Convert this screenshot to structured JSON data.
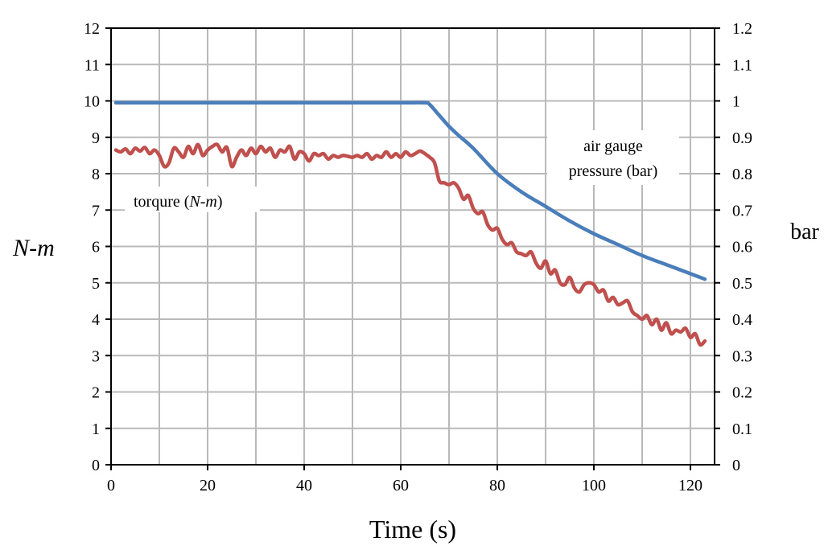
{
  "chart_data": {
    "type": "line",
    "xlabel": "Time (s)",
    "ylabel_left": "N-m",
    "ylabel_right": "bar",
    "xlim": [
      0,
      125
    ],
    "xticks": [
      0,
      20,
      40,
      60,
      80,
      100,
      120
    ],
    "xgrid_step": 10,
    "ylim_left": [
      0,
      12
    ],
    "yticks_left": [
      "0",
      "1",
      "2",
      "3",
      "4",
      "5",
      "6",
      "7",
      "8",
      "9",
      "10",
      "11",
      "12"
    ],
    "ylim_right": [
      0,
      1.2
    ],
    "yticks_right": [
      "0",
      "0.1",
      "0.2",
      "0.3",
      "0.4",
      "0.5",
      "0.6",
      "0.7",
      "0.8",
      "0.9",
      "1",
      "1.1",
      "1.2"
    ],
    "grid": true,
    "annotations": {
      "torque": {
        "prefix": "torqure (",
        "italic": "N-m",
        "suffix": ")"
      },
      "pressure": {
        "line1": "air gauge",
        "line2": "pressure (bar)"
      }
    },
    "series": [
      {
        "name": "air gauge pressure (bar)",
        "axis": "right",
        "color": "#4a7ebb",
        "x": [
          1,
          10,
          20,
          30,
          40,
          50,
          60,
          65,
          66,
          68,
          70,
          72,
          75,
          80,
          85,
          90,
          95,
          100,
          105,
          110,
          115,
          120,
          123
        ],
        "y": [
          0.995,
          0.995,
          0.995,
          0.995,
          0.995,
          0.995,
          0.995,
          0.995,
          0.99,
          0.96,
          0.93,
          0.905,
          0.87,
          0.8,
          0.75,
          0.71,
          0.67,
          0.635,
          0.605,
          0.575,
          0.55,
          0.525,
          0.51
        ]
      },
      {
        "name": "torqure (N-m)",
        "axis": "left",
        "color": "#c0504d",
        "x": [
          1,
          2,
          3,
          4,
          5,
          6,
          7,
          8,
          9,
          10,
          11,
          12,
          13,
          14,
          15,
          16,
          17,
          18,
          19,
          20,
          21,
          22,
          23,
          24,
          25,
          26,
          27,
          28,
          29,
          30,
          31,
          32,
          33,
          34,
          35,
          36,
          37,
          38,
          39,
          40,
          41,
          42,
          43,
          44,
          45,
          46,
          47,
          48,
          49,
          50,
          51,
          52,
          53,
          54,
          55,
          56,
          57,
          58,
          59,
          60,
          61,
          62,
          63,
          64,
          65,
          66,
          67,
          68,
          69,
          70,
          71,
          72,
          73,
          74,
          75,
          76,
          77,
          78,
          79,
          80,
          81,
          82,
          83,
          84,
          85,
          86,
          87,
          88,
          89,
          90,
          91,
          92,
          93,
          94,
          95,
          96,
          97,
          98,
          99,
          100,
          101,
          102,
          103,
          104,
          105,
          106,
          107,
          108,
          109,
          110,
          111,
          112,
          113,
          114,
          115,
          116,
          117,
          118,
          119,
          120,
          121,
          122,
          123
        ],
        "y": [
          8.65,
          8.6,
          8.68,
          8.55,
          8.7,
          8.62,
          8.72,
          8.55,
          8.65,
          8.5,
          8.2,
          8.3,
          8.7,
          8.6,
          8.45,
          8.75,
          8.55,
          8.8,
          8.5,
          8.65,
          8.75,
          8.8,
          8.6,
          8.72,
          8.2,
          8.45,
          8.65,
          8.5,
          8.7,
          8.55,
          8.75,
          8.6,
          8.7,
          8.45,
          8.65,
          8.6,
          8.75,
          8.4,
          8.6,
          8.55,
          8.35,
          8.55,
          8.5,
          8.55,
          8.4,
          8.5,
          8.45,
          8.5,
          8.48,
          8.45,
          8.5,
          8.45,
          8.55,
          8.4,
          8.5,
          8.45,
          8.6,
          8.45,
          8.55,
          8.45,
          8.6,
          8.5,
          8.55,
          8.62,
          8.55,
          8.45,
          8.3,
          7.8,
          7.75,
          7.7,
          7.75,
          7.6,
          7.3,
          7.4,
          7.05,
          6.9,
          6.95,
          6.6,
          6.45,
          6.5,
          6.2,
          6.05,
          6.1,
          5.85,
          5.8,
          5.75,
          5.85,
          5.55,
          5.4,
          5.6,
          5.25,
          5.35,
          5.0,
          4.95,
          5.15,
          4.85,
          4.75,
          4.95,
          5.0,
          4.95,
          4.75,
          4.8,
          4.5,
          4.6,
          4.4,
          4.45,
          4.5,
          4.2,
          4.1,
          4.0,
          4.1,
          3.85,
          4.0,
          3.7,
          3.9,
          3.6,
          3.7,
          3.65,
          3.75,
          3.5,
          3.6,
          3.3,
          3.4
        ]
      }
    ]
  }
}
